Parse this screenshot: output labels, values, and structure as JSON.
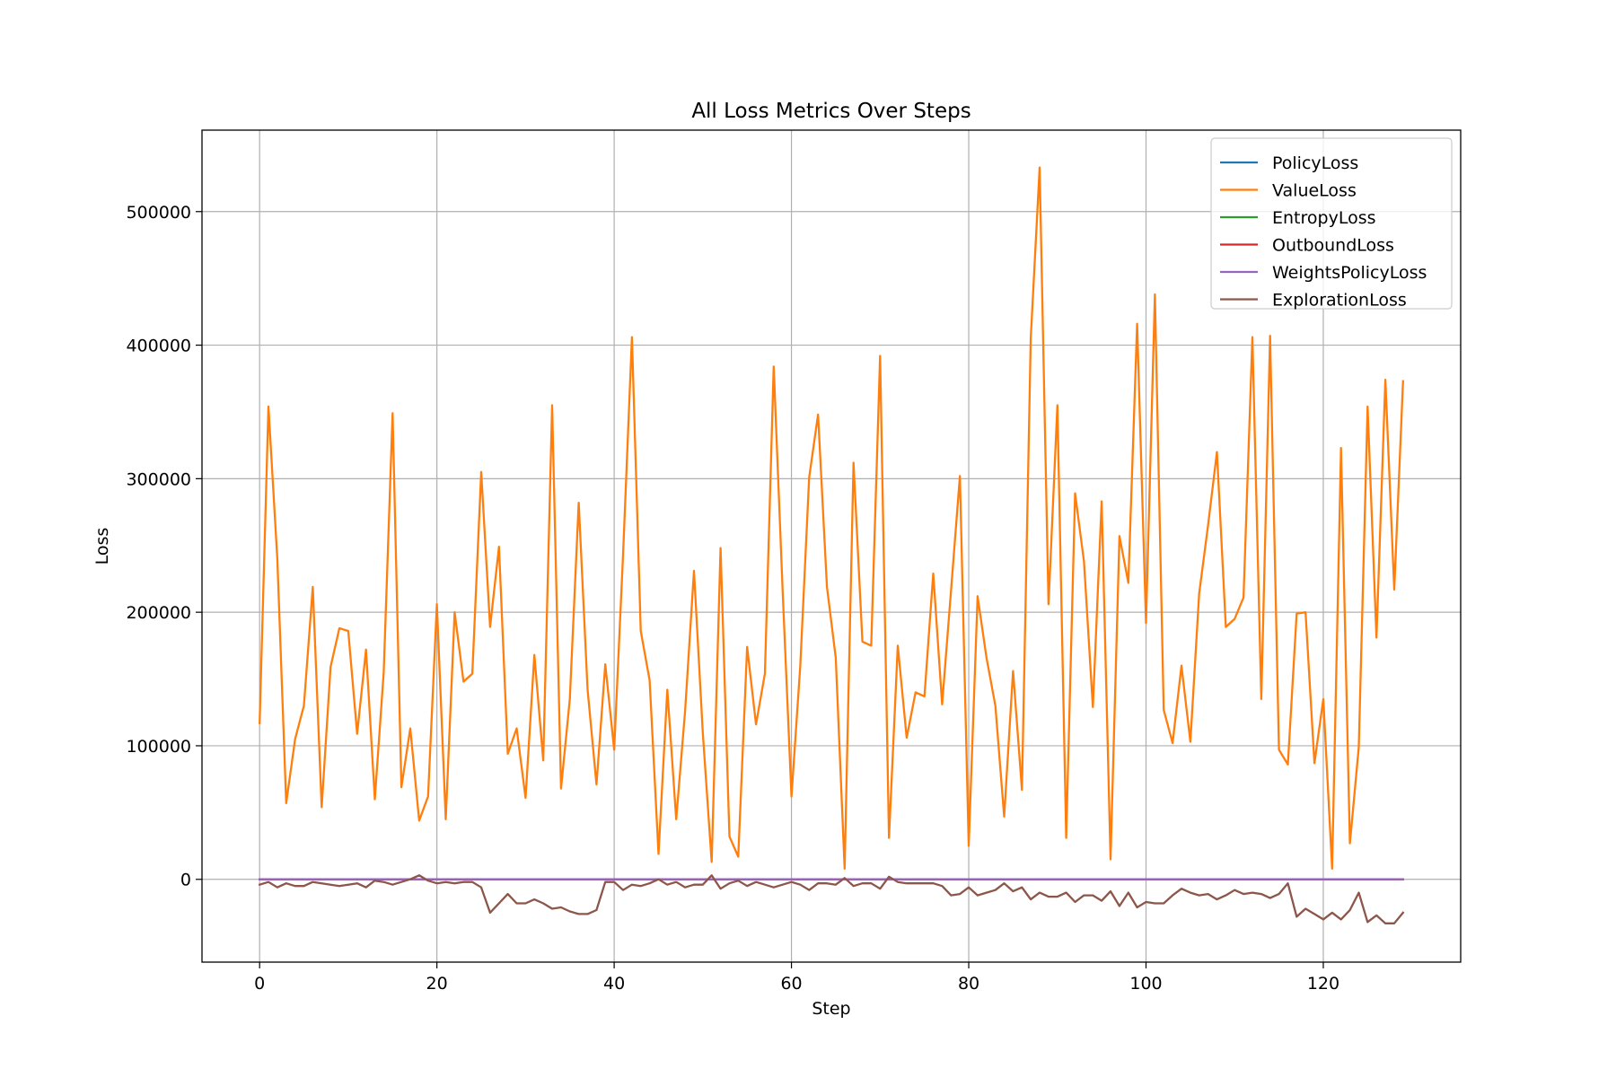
{
  "chart_data": {
    "type": "line",
    "title": "All Loss Metrics Over Steps",
    "xlabel": "Step",
    "ylabel": "Loss",
    "xlim": [
      -6.5,
      135.5
    ],
    "ylim": [
      -62000,
      561000
    ],
    "xticks": [
      0,
      20,
      40,
      60,
      80,
      100,
      120
    ],
    "yticks": [
      0,
      100000,
      200000,
      300000,
      400000,
      500000
    ],
    "xtick_labels": [
      "0",
      "20",
      "40",
      "60",
      "80",
      "100",
      "120"
    ],
    "ytick_labels": [
      "0",
      "100000",
      "200000",
      "300000",
      "400000",
      "500000"
    ],
    "grid": true,
    "legend_position": "top-right",
    "x": [
      0,
      1,
      2,
      3,
      4,
      5,
      6,
      7,
      8,
      9,
      10,
      11,
      12,
      13,
      14,
      15,
      16,
      17,
      18,
      19,
      20,
      21,
      22,
      23,
      24,
      25,
      26,
      27,
      28,
      29,
      30,
      31,
      32,
      33,
      34,
      35,
      36,
      37,
      38,
      39,
      40,
      41,
      42,
      43,
      44,
      45,
      46,
      47,
      48,
      49,
      50,
      51,
      52,
      53,
      54,
      55,
      56,
      57,
      58,
      59,
      60,
      61,
      62,
      63,
      64,
      65,
      66,
      67,
      68,
      69,
      70,
      71,
      72,
      73,
      74,
      75,
      76,
      77,
      78,
      79,
      80,
      81,
      82,
      83,
      84,
      85,
      86,
      87,
      88,
      89,
      90,
      91,
      92,
      93,
      94,
      95,
      96,
      97,
      98,
      99,
      100,
      101,
      102,
      103,
      104,
      105,
      106,
      107,
      108,
      109,
      110,
      111,
      112,
      113,
      114,
      115,
      116,
      117,
      118,
      119,
      120,
      121,
      122,
      123,
      124,
      125,
      126,
      127,
      128,
      129
    ],
    "series": [
      {
        "name": "PolicyLoss",
        "color": "#1f77b4",
        "values": [
          0,
          0,
          0,
          0,
          0,
          0,
          0,
          0,
          0,
          0,
          0,
          0,
          0,
          0,
          0,
          0,
          0,
          0,
          0,
          0,
          0,
          0,
          0,
          0,
          0,
          0,
          0,
          0,
          0,
          0,
          0,
          0,
          0,
          0,
          0,
          0,
          0,
          0,
          0,
          0,
          0,
          0,
          0,
          0,
          0,
          0,
          0,
          0,
          0,
          0,
          0,
          0,
          0,
          0,
          0,
          0,
          0,
          0,
          0,
          0,
          0,
          0,
          0,
          0,
          0,
          0,
          0,
          0,
          0,
          0,
          0,
          0,
          0,
          0,
          0,
          0,
          0,
          0,
          0,
          0,
          0,
          0,
          0,
          0,
          0,
          0,
          0,
          0,
          0,
          0,
          0,
          0,
          0,
          0,
          0,
          0,
          0,
          0,
          0,
          0,
          0,
          0,
          0,
          0,
          0,
          0,
          0,
          0,
          0,
          0,
          0,
          0,
          0,
          0,
          0,
          0,
          0,
          0,
          0,
          0,
          0,
          0,
          0,
          0,
          0,
          0,
          0,
          0,
          0,
          0
        ]
      },
      {
        "name": "ValueLoss",
        "color": "#ff7f0e",
        "values": [
          117000,
          354000,
          240000,
          57000,
          105000,
          130000,
          219000,
          54000,
          159000,
          188000,
          186000,
          109000,
          172000,
          60000,
          155000,
          349000,
          69000,
          113000,
          44000,
          62000,
          206000,
          45000,
          200000,
          148000,
          154000,
          305000,
          189000,
          249000,
          94000,
          113000,
          61000,
          168000,
          89000,
          355000,
          68000,
          135000,
          282000,
          142000,
          71000,
          161000,
          97000,
          243000,
          406000,
          186000,
          149000,
          19000,
          142000,
          45000,
          126000,
          231000,
          110000,
          13000,
          248000,
          32000,
          17000,
          174000,
          116000,
          154000,
          384000,
          217000,
          62000,
          160000,
          301000,
          348000,
          219000,
          166000,
          8000,
          312000,
          178000,
          175000,
          392000,
          31000,
          175000,
          106000,
          140000,
          137000,
          229000,
          131000,
          216000,
          302000,
          25000,
          212000,
          166000,
          130000,
          47000,
          156000,
          67000,
          405000,
          533000,
          206000,
          355000,
          31000,
          289000,
          238000,
          129000,
          283000,
          15000,
          257000,
          222000,
          416000,
          192000,
          438000,
          127000,
          102000,
          160000,
          103000,
          214000,
          265000,
          320000,
          189000,
          195000,
          211000,
          406000,
          135000,
          407000,
          97000,
          86000,
          199000,
          200000,
          87000,
          135000,
          8000,
          323000,
          27000,
          99000,
          354000,
          181000,
          374000,
          217000,
          373000
        ]
      },
      {
        "name": "EntropyLoss",
        "color": "#2ca02c",
        "values": [
          0,
          0,
          0,
          0,
          0,
          0,
          0,
          0,
          0,
          0,
          0,
          0,
          0,
          0,
          0,
          0,
          0,
          0,
          0,
          0,
          0,
          0,
          0,
          0,
          0,
          0,
          0,
          0,
          0,
          0,
          0,
          0,
          0,
          0,
          0,
          0,
          0,
          0,
          0,
          0,
          0,
          0,
          0,
          0,
          0,
          0,
          0,
          0,
          0,
          0,
          0,
          0,
          0,
          0,
          0,
          0,
          0,
          0,
          0,
          0,
          0,
          0,
          0,
          0,
          0,
          0,
          0,
          0,
          0,
          0,
          0,
          0,
          0,
          0,
          0,
          0,
          0,
          0,
          0,
          0,
          0,
          0,
          0,
          0,
          0,
          0,
          0,
          0,
          0,
          0,
          0,
          0,
          0,
          0,
          0,
          0,
          0,
          0,
          0,
          0,
          0,
          0,
          0,
          0,
          0,
          0,
          0,
          0,
          0,
          0,
          0,
          0,
          0,
          0,
          0,
          0,
          0,
          0,
          0,
          0,
          0,
          0,
          0,
          0,
          0,
          0,
          0,
          0,
          0,
          0
        ]
      },
      {
        "name": "OutboundLoss",
        "color": "#d62728",
        "values": [
          0,
          0,
          0,
          0,
          0,
          0,
          0,
          0,
          0,
          0,
          0,
          0,
          0,
          0,
          0,
          0,
          0,
          0,
          0,
          0,
          0,
          0,
          0,
          0,
          0,
          0,
          0,
          0,
          0,
          0,
          0,
          0,
          0,
          0,
          0,
          0,
          0,
          0,
          0,
          0,
          0,
          0,
          0,
          0,
          0,
          0,
          0,
          0,
          0,
          0,
          0,
          0,
          0,
          0,
          0,
          0,
          0,
          0,
          0,
          0,
          0,
          0,
          0,
          0,
          0,
          0,
          0,
          0,
          0,
          0,
          0,
          0,
          0,
          0,
          0,
          0,
          0,
          0,
          0,
          0,
          0,
          0,
          0,
          0,
          0,
          0,
          0,
          0,
          0,
          0,
          0,
          0,
          0,
          0,
          0,
          0,
          0,
          0,
          0,
          0,
          0,
          0,
          0,
          0,
          0,
          0,
          0,
          0,
          0,
          0,
          0,
          0,
          0,
          0,
          0,
          0,
          0,
          0,
          0,
          0,
          0,
          0,
          0,
          0,
          0,
          0,
          0,
          0,
          0,
          0
        ]
      },
      {
        "name": "WeightsPolicyLoss",
        "color": "#9467bd",
        "values": [
          0,
          0,
          0,
          0,
          0,
          0,
          0,
          0,
          0,
          0,
          0,
          0,
          0,
          0,
          0,
          0,
          0,
          0,
          0,
          0,
          0,
          0,
          0,
          0,
          0,
          0,
          0,
          0,
          0,
          0,
          0,
          0,
          0,
          0,
          0,
          0,
          0,
          0,
          0,
          0,
          0,
          0,
          0,
          0,
          0,
          0,
          0,
          0,
          0,
          0,
          0,
          0,
          0,
          0,
          0,
          0,
          0,
          0,
          0,
          0,
          0,
          0,
          0,
          0,
          0,
          0,
          0,
          0,
          0,
          0,
          0,
          0,
          0,
          0,
          0,
          0,
          0,
          0,
          0,
          0,
          0,
          0,
          0,
          0,
          0,
          0,
          0,
          0,
          0,
          0,
          0,
          0,
          0,
          0,
          0,
          0,
          0,
          0,
          0,
          0,
          0,
          0,
          0,
          0,
          0,
          0,
          0,
          0,
          0,
          0,
          0,
          0,
          0,
          0,
          0,
          0,
          0,
          0,
          0,
          0,
          0,
          0,
          0,
          0,
          0,
          0,
          0,
          0,
          0,
          0
        ]
      },
      {
        "name": "ExplorationLoss",
        "color": "#8c564b",
        "values": [
          -4000,
          -2000,
          -6000,
          -3000,
          -5000,
          -5000,
          -2000,
          -3000,
          -4000,
          -5000,
          -4000,
          -3000,
          -6000,
          -1000,
          -2000,
          -4000,
          -2000,
          0,
          3000,
          -1000,
          -3000,
          -2000,
          -3000,
          -2000,
          -2000,
          -6000,
          -25000,
          -18000,
          -11000,
          -18000,
          -18000,
          -15000,
          -18000,
          -22000,
          -21000,
          -24000,
          -26000,
          -26000,
          -23000,
          -2000,
          -2000,
          -8000,
          -4000,
          -5000,
          -3000,
          0,
          -4000,
          -2000,
          -6000,
          -4000,
          -4000,
          3000,
          -7000,
          -3000,
          -1000,
          -5000,
          -2000,
          -4000,
          -6000,
          -4000,
          -2000,
          -4000,
          -8000,
          -3000,
          -3000,
          -4000,
          1000,
          -5000,
          -3000,
          -3000,
          -7000,
          2000,
          -2000,
          -3000,
          -3000,
          -3000,
          -3000,
          -5000,
          -12000,
          -11000,
          -6000,
          -12000,
          -10000,
          -8000,
          -3000,
          -9000,
          -6000,
          -15000,
          -10000,
          -13000,
          -13000,
          -10000,
          -17000,
          -12000,
          -12000,
          -16000,
          -9000,
          -20000,
          -10000,
          -21000,
          -17000,
          -18000,
          -18000,
          -12000,
          -7000,
          -10000,
          -12000,
          -11000,
          -15000,
          -12000,
          -8000,
          -11000,
          -10000,
          -11000,
          -14000,
          -11000,
          -3000,
          -28000,
          -22000,
          -26000,
          -30000,
          -25000,
          -30000,
          -23000,
          -10000,
          -32000,
          -27000,
          -33000,
          -33000,
          -25000
        ]
      }
    ]
  }
}
